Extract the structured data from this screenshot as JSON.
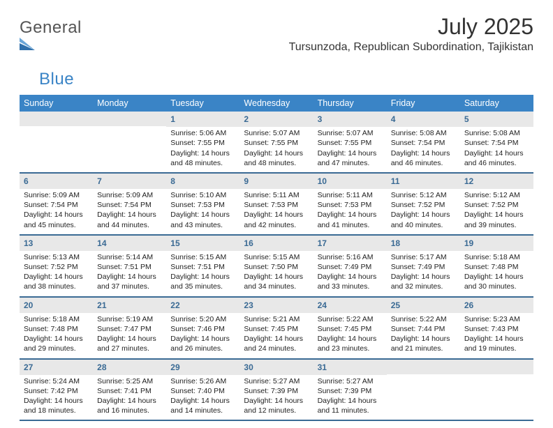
{
  "logo": {
    "text1": "General",
    "text2": "Blue",
    "mark_color": "#2f6fab",
    "text_color": "#555"
  },
  "title": "July 2025",
  "location": "Tursunzoda, Republican Subordination, Tajikistan",
  "colors": {
    "header_bg": "#3a84c6",
    "week_divider": "#3a6a94",
    "daynum_bg": "#e8e8e8",
    "daynum_color": "#3a6a94",
    "page_bg": "#ffffff",
    "text": "#222222"
  },
  "weekdays": [
    "Sunday",
    "Monday",
    "Tuesday",
    "Wednesday",
    "Thursday",
    "Friday",
    "Saturday"
  ],
  "weeks": [
    [
      {
        "n": "",
        "sr": "",
        "ss": "",
        "dl": ""
      },
      {
        "n": "",
        "sr": "",
        "ss": "",
        "dl": ""
      },
      {
        "n": "1",
        "sr": "Sunrise: 5:06 AM",
        "ss": "Sunset: 7:55 PM",
        "dl": "Daylight: 14 hours and 48 minutes."
      },
      {
        "n": "2",
        "sr": "Sunrise: 5:07 AM",
        "ss": "Sunset: 7:55 PM",
        "dl": "Daylight: 14 hours and 48 minutes."
      },
      {
        "n": "3",
        "sr": "Sunrise: 5:07 AM",
        "ss": "Sunset: 7:55 PM",
        "dl": "Daylight: 14 hours and 47 minutes."
      },
      {
        "n": "4",
        "sr": "Sunrise: 5:08 AM",
        "ss": "Sunset: 7:54 PM",
        "dl": "Daylight: 14 hours and 46 minutes."
      },
      {
        "n": "5",
        "sr": "Sunrise: 5:08 AM",
        "ss": "Sunset: 7:54 PM",
        "dl": "Daylight: 14 hours and 46 minutes."
      }
    ],
    [
      {
        "n": "6",
        "sr": "Sunrise: 5:09 AM",
        "ss": "Sunset: 7:54 PM",
        "dl": "Daylight: 14 hours and 45 minutes."
      },
      {
        "n": "7",
        "sr": "Sunrise: 5:09 AM",
        "ss": "Sunset: 7:54 PM",
        "dl": "Daylight: 14 hours and 44 minutes."
      },
      {
        "n": "8",
        "sr": "Sunrise: 5:10 AM",
        "ss": "Sunset: 7:53 PM",
        "dl": "Daylight: 14 hours and 43 minutes."
      },
      {
        "n": "9",
        "sr": "Sunrise: 5:11 AM",
        "ss": "Sunset: 7:53 PM",
        "dl": "Daylight: 14 hours and 42 minutes."
      },
      {
        "n": "10",
        "sr": "Sunrise: 5:11 AM",
        "ss": "Sunset: 7:53 PM",
        "dl": "Daylight: 14 hours and 41 minutes."
      },
      {
        "n": "11",
        "sr": "Sunrise: 5:12 AM",
        "ss": "Sunset: 7:52 PM",
        "dl": "Daylight: 14 hours and 40 minutes."
      },
      {
        "n": "12",
        "sr": "Sunrise: 5:12 AM",
        "ss": "Sunset: 7:52 PM",
        "dl": "Daylight: 14 hours and 39 minutes."
      }
    ],
    [
      {
        "n": "13",
        "sr": "Sunrise: 5:13 AM",
        "ss": "Sunset: 7:52 PM",
        "dl": "Daylight: 14 hours and 38 minutes."
      },
      {
        "n": "14",
        "sr": "Sunrise: 5:14 AM",
        "ss": "Sunset: 7:51 PM",
        "dl": "Daylight: 14 hours and 37 minutes."
      },
      {
        "n": "15",
        "sr": "Sunrise: 5:15 AM",
        "ss": "Sunset: 7:51 PM",
        "dl": "Daylight: 14 hours and 35 minutes."
      },
      {
        "n": "16",
        "sr": "Sunrise: 5:15 AM",
        "ss": "Sunset: 7:50 PM",
        "dl": "Daylight: 14 hours and 34 minutes."
      },
      {
        "n": "17",
        "sr": "Sunrise: 5:16 AM",
        "ss": "Sunset: 7:49 PM",
        "dl": "Daylight: 14 hours and 33 minutes."
      },
      {
        "n": "18",
        "sr": "Sunrise: 5:17 AM",
        "ss": "Sunset: 7:49 PM",
        "dl": "Daylight: 14 hours and 32 minutes."
      },
      {
        "n": "19",
        "sr": "Sunrise: 5:18 AM",
        "ss": "Sunset: 7:48 PM",
        "dl": "Daylight: 14 hours and 30 minutes."
      }
    ],
    [
      {
        "n": "20",
        "sr": "Sunrise: 5:18 AM",
        "ss": "Sunset: 7:48 PM",
        "dl": "Daylight: 14 hours and 29 minutes."
      },
      {
        "n": "21",
        "sr": "Sunrise: 5:19 AM",
        "ss": "Sunset: 7:47 PM",
        "dl": "Daylight: 14 hours and 27 minutes."
      },
      {
        "n": "22",
        "sr": "Sunrise: 5:20 AM",
        "ss": "Sunset: 7:46 PM",
        "dl": "Daylight: 14 hours and 26 minutes."
      },
      {
        "n": "23",
        "sr": "Sunrise: 5:21 AM",
        "ss": "Sunset: 7:45 PM",
        "dl": "Daylight: 14 hours and 24 minutes."
      },
      {
        "n": "24",
        "sr": "Sunrise: 5:22 AM",
        "ss": "Sunset: 7:45 PM",
        "dl": "Daylight: 14 hours and 23 minutes."
      },
      {
        "n": "25",
        "sr": "Sunrise: 5:22 AM",
        "ss": "Sunset: 7:44 PM",
        "dl": "Daylight: 14 hours and 21 minutes."
      },
      {
        "n": "26",
        "sr": "Sunrise: 5:23 AM",
        "ss": "Sunset: 7:43 PM",
        "dl": "Daylight: 14 hours and 19 minutes."
      }
    ],
    [
      {
        "n": "27",
        "sr": "Sunrise: 5:24 AM",
        "ss": "Sunset: 7:42 PM",
        "dl": "Daylight: 14 hours and 18 minutes."
      },
      {
        "n": "28",
        "sr": "Sunrise: 5:25 AM",
        "ss": "Sunset: 7:41 PM",
        "dl": "Daylight: 14 hours and 16 minutes."
      },
      {
        "n": "29",
        "sr": "Sunrise: 5:26 AM",
        "ss": "Sunset: 7:40 PM",
        "dl": "Daylight: 14 hours and 14 minutes."
      },
      {
        "n": "30",
        "sr": "Sunrise: 5:27 AM",
        "ss": "Sunset: 7:39 PM",
        "dl": "Daylight: 14 hours and 12 minutes."
      },
      {
        "n": "31",
        "sr": "Sunrise: 5:27 AM",
        "ss": "Sunset: 7:39 PM",
        "dl": "Daylight: 14 hours and 11 minutes."
      },
      {
        "n": "",
        "sr": "",
        "ss": "",
        "dl": ""
      },
      {
        "n": "",
        "sr": "",
        "ss": "",
        "dl": ""
      }
    ]
  ]
}
